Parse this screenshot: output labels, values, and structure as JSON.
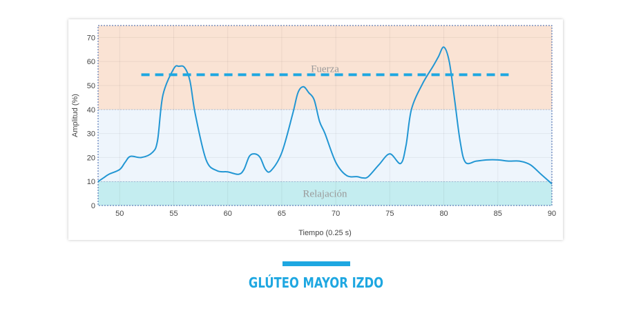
{
  "chart_data": {
    "type": "line",
    "title": "",
    "xlabel": "Tiempo (0.25 s)",
    "ylabel": "Amplitud (%)",
    "xlim": [
      48,
      90
    ],
    "ylim": [
      0,
      75
    ],
    "xticks": [
      50,
      55,
      60,
      65,
      70,
      75,
      80,
      85,
      90
    ],
    "yticks": [
      0,
      10,
      20,
      30,
      40,
      50,
      60,
      70
    ],
    "grid": true,
    "bands": [
      {
        "name": "Relajación",
        "from": 0,
        "to": 10,
        "color": "#c4edf0",
        "label_x": 69
      },
      {
        "name": "",
        "from": 10,
        "to": 40,
        "color": "#eef5fc",
        "label_x": null
      },
      {
        "name": "Fuerza",
        "from": 40,
        "to": 75,
        "color": "#fae3d4",
        "label_x": 69
      }
    ],
    "threshold": {
      "value": 54.5,
      "x_from": 52,
      "x_to": 86,
      "color": "#1ea7e1"
    },
    "series": [
      {
        "name": "Amplitud",
        "color": "#2196d3",
        "x": [
          48,
          48.5,
          49,
          50,
          50.5,
          51,
          52,
          53,
          53.5,
          54,
          55,
          55.5,
          56,
          56.5,
          57,
          58,
          59,
          60,
          61,
          61.5,
          62,
          62.5,
          63,
          63.5,
          64,
          65,
          66,
          66.5,
          67,
          67.5,
          68,
          68.5,
          69,
          70,
          71,
          72,
          72.5,
          73,
          74,
          75,
          76,
          76.5,
          77,
          78,
          79,
          79.5,
          80,
          80.5,
          81,
          81.5,
          82,
          83,
          84,
          85,
          86,
          87,
          88,
          89,
          90
        ],
        "y": [
          10,
          11.5,
          13,
          15,
          18,
          20.5,
          20,
          22,
          27,
          46,
          57,
          58,
          57.5,
          52,
          38,
          19,
          14.5,
          14,
          13,
          15,
          20.5,
          21.5,
          20,
          15,
          14.5,
          22,
          38,
          47,
          49.5,
          47,
          44,
          35,
          30,
          18,
          12.5,
          12,
          11.5,
          12,
          17,
          21.5,
          17.5,
          25,
          40,
          50.5,
          58,
          62,
          66,
          60,
          44,
          27,
          18,
          18.5,
          19,
          19,
          18.5,
          18.5,
          17,
          13,
          9
        ]
      }
    ]
  },
  "caption": "GLÚTEO MAYOR IZDO"
}
